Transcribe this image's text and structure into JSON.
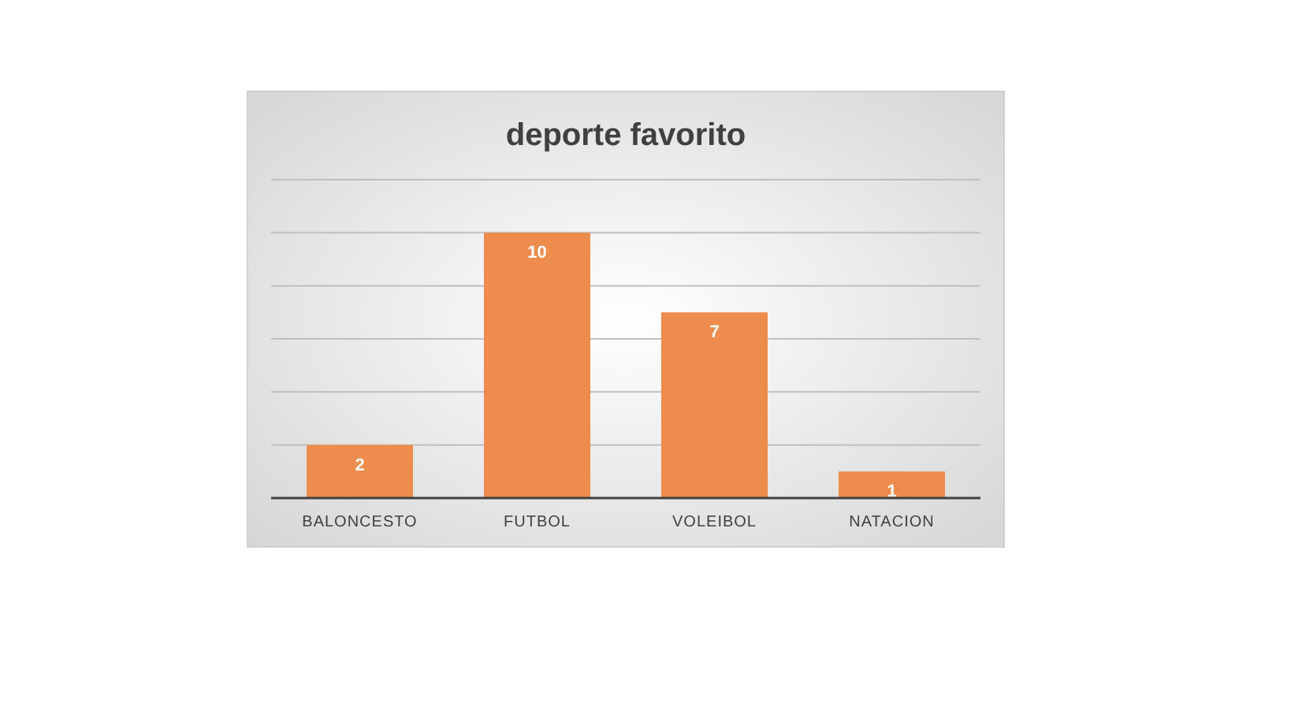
{
  "chart_data": {
    "type": "bar",
    "title": "deporte favorito",
    "categories": [
      "BALONCESTO",
      "FUTBOL",
      "VOLEIBOL",
      "NATACION"
    ],
    "values": [
      2,
      10,
      7,
      1
    ],
    "color": "#ed8c4c",
    "ylim": [
      0,
      12
    ],
    "yticks": [
      {
        "value": 0,
        "label": null
      },
      {
        "value": 2,
        "label": null
      },
      {
        "value": 4,
        "label": null
      },
      {
        "value": 6,
        "label": null
      },
      {
        "value": 8,
        "label": null
      },
      {
        "value": 10,
        "label": null
      },
      {
        "value": 12,
        "label": null
      }
    ],
    "tick_labels": "x",
    "grid": "y",
    "data_labels": true
  }
}
